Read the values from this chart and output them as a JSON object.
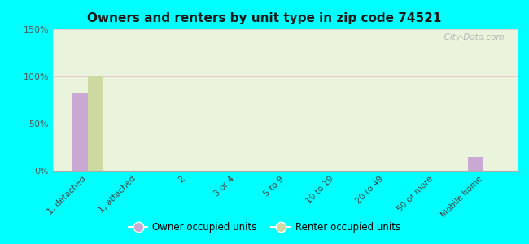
{
  "title": "Owners and renters by unit type in zip code 74521",
  "categories": [
    "1, detached",
    "1, attached",
    "2",
    "3 or 4",
    "5 to 9",
    "10 to 19",
    "20 to 49",
    "50 or more",
    "Mobile home"
  ],
  "owner_values": [
    83,
    0,
    0,
    0,
    0,
    0,
    0,
    0,
    15
  ],
  "renter_values": [
    100,
    0,
    0,
    0,
    0,
    0,
    0,
    0,
    0
  ],
  "owner_color": "#c9a8d4",
  "renter_color": "#cdd9a0",
  "background_color": "#00ffff",
  "ylim": [
    0,
    150
  ],
  "yticks": [
    0,
    50,
    100,
    150
  ],
  "ytick_labels": [
    "0%",
    "50%",
    "100%",
    "150%"
  ],
  "bar_width": 0.32,
  "legend_labels": [
    "Owner occupied units",
    "Renter occupied units"
  ],
  "watermark": "  City-Data.com"
}
